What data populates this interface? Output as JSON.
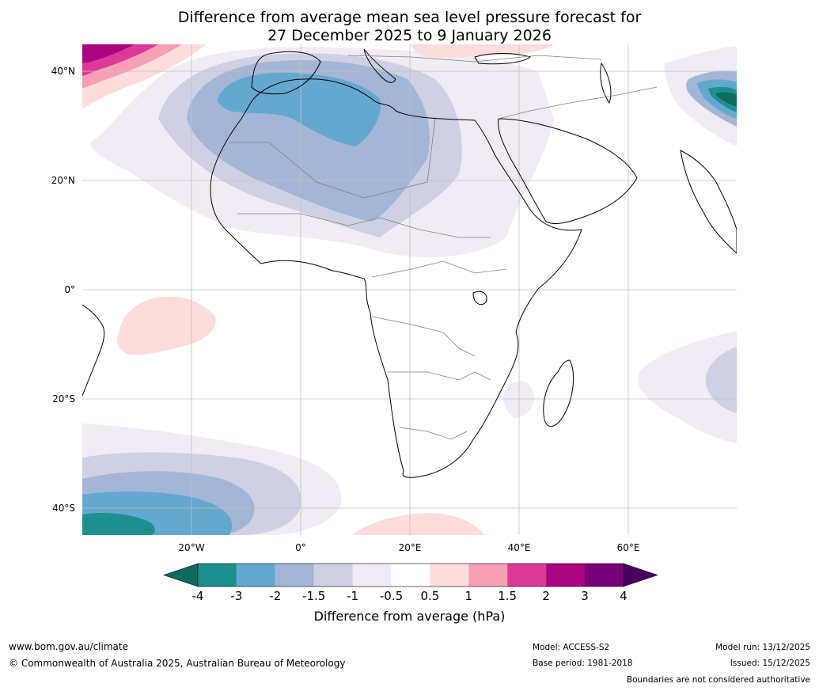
{
  "title_line1": "Difference from average mean sea level pressure forecast for",
  "title_line2": "27 December 2025 to 9 January 2026",
  "map": {
    "lat_labels": [
      "40°N",
      "20°N",
      "0°",
      "20°S",
      "40°S"
    ],
    "lon_labels": [
      "20°W",
      "0°",
      "20°E",
      "40°E",
      "60°E"
    ]
  },
  "colorbar": {
    "ticks": [
      "-4",
      "-3",
      "-2",
      "-1.5",
      "-1",
      "-0.5",
      "0.5",
      "1",
      "1.5",
      "2",
      "3",
      "4"
    ],
    "colors": [
      "#0f6b5e",
      "#1e8f8f",
      "#64a8d0",
      "#a3b6d6",
      "#cfd0e3",
      "#f1ecf3",
      "#ffffff",
      "#fddcdc",
      "#f79fb7",
      "#dc3a98",
      "#ab0480",
      "#780078",
      "#4a0060"
    ],
    "label": "Difference from average (hPa)"
  },
  "footer": {
    "url": "www.bom.gov.au/climate",
    "copyright": "© Commonwealth of Australia 2025, Australian Bureau of Meteorology",
    "model": "Model: ACCESS-S2",
    "base_period": "Base period: 1981-2018",
    "model_run": "Model run: 13/12/2025",
    "issued": "Issued: 15/12/2025",
    "boundaries": "Boundaries are not considered authoritative"
  }
}
